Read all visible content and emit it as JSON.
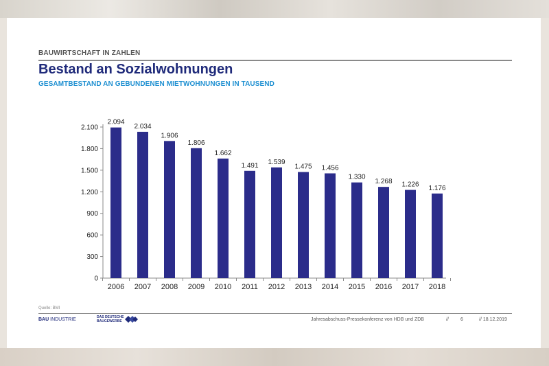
{
  "header": {
    "section_label": "BAUWIRTSCHAFT IN ZAHLEN",
    "title": "Bestand an Sozialwohnungen",
    "subtitle": "GESAMTBESTAND AN GEBUNDENEN MIETWOHNUNGEN IN TAUSEND"
  },
  "chart_data": {
    "type": "bar",
    "categories": [
      "2006",
      "2007",
      "2008",
      "2009",
      "2010",
      "2011",
      "2012",
      "2013",
      "2014",
      "2015",
      "2016",
      "2017",
      "2018"
    ],
    "values": [
      2094,
      2034,
      1906,
      1806,
      1662,
      1491,
      1539,
      1475,
      1456,
      1330,
      1268,
      1226,
      1176
    ],
    "value_labels": [
      "2.094",
      "2.034",
      "1.906",
      "1.806",
      "1.662",
      "1.491",
      "1.539",
      "1.475",
      "1.456",
      "1.330",
      "1.268",
      "1.226",
      "1.176"
    ],
    "y_ticks": [
      0,
      300,
      600,
      900,
      1200,
      1500,
      1800,
      2100
    ],
    "y_tick_labels": [
      "0",
      "300",
      "600",
      "900",
      "1.200",
      "1.500",
      "1.800",
      "2.100"
    ],
    "ylim": [
      0,
      2100
    ],
    "grid": false,
    "legend": "none",
    "bar_color": "#2b2c8a",
    "title": "",
    "xlabel": "",
    "ylabel": ""
  },
  "footer": {
    "source": "Quelle: BMI",
    "logo_bau_strong": "BAU",
    "logo_bau_rest": "INDUSTRIE",
    "logo_zdb": "DAS DEUTSCHE BAUGEWERBE",
    "conference": "Jahresabschuss-Pressekonferenz von HDB und ZDB",
    "separator": "//",
    "page": "6",
    "date": "// 18.12.2019"
  },
  "colors": {
    "title": "#1f2a7a",
    "subtitle": "#1d8fd1",
    "bar": "#2b2c8a"
  }
}
